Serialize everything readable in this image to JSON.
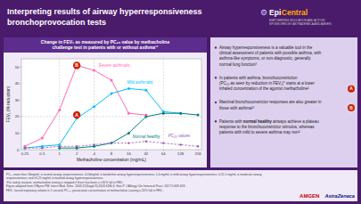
{
  "header": {
    "title_lines": [
      "Interpreting results of airway hyperresponsiveness",
      "bronchoprovocation tests"
    ],
    "logo": {
      "icon": "⚙",
      "parts": [
        "Epi",
        "Central"
      ],
      "tagline": "EMPOWERING EDUCATION AND ACTION\nSPONSORED BY ASTRAZENECA AND AMGEN"
    }
  },
  "chart_data": {
    "type": "line",
    "title": "Change in FEV₁ as measured by PC₂₀ value by methacholine\nchallenge test in patients with or without asthma¹²",
    "xlabel": "Methacholine concentration (mg/mL)",
    "ylabel": "FEV₁ (% reduction)",
    "log": "x",
    "x": [
      0.25,
      0.5,
      1,
      2,
      4,
      8,
      16,
      32,
      64,
      128,
      256
    ],
    "xlim": [
      0.21763764,
      294.0667789
    ],
    "xticks": [
      0.25,
      0.5,
      1,
      2,
      4,
      8,
      16,
      32,
      64,
      128,
      256
    ],
    "ylim": [
      0,
      55
    ],
    "yticks": [
      0,
      10,
      20,
      30,
      40,
      50
    ],
    "grid": false,
    "series": [
      {
        "name": "Severe asthmatic",
        "color": "#ff69b4",
        "marker": "circle",
        "line_style": "solid",
        "values": [
          2,
          7,
          24,
          51,
          48,
          42,
          22,
          21,
          null,
          null,
          null
        ]
      },
      {
        "name": "Mild asthmatic",
        "color": "#00bfff",
        "marker": "circle",
        "line_style": "solid",
        "values": [
          1,
          2,
          3,
          19,
          26,
          34,
          37,
          36,
          23,
          22,
          null
        ]
      },
      {
        "name": "Normal healthy",
        "color": "#008080",
        "marker": "circle",
        "line_style": "solid",
        "values": [
          null,
          null,
          1,
          1,
          2,
          4,
          10,
          20,
          22,
          22,
          21
        ]
      },
      {
        "name": "PC₂₀ values",
        "color": "#9b59b6",
        "marker": "circle",
        "line_style": "dashed",
        "values": [
          1,
          1,
          2,
          2,
          3,
          4,
          4,
          5,
          4,
          3,
          2
        ]
      }
    ],
    "hlines": [
      20
    ],
    "vlines": [
      1,
      4,
      64
    ],
    "annotations": [
      {
        "text": "A",
        "x": 2,
        "y": 21
      },
      {
        "text": "B",
        "x": 2,
        "y": 51
      }
    ]
  },
  "side_panel": {
    "bullets": [
      {
        "text": "Airway hyperresponsiveness is a valuable tool in the\nclinical assessment of patients with possible asthma, with\nasthma-like symptoms, or non-diagnostic, generally\nnormal lung function³"
      },
      {
        "text": "In patients with asthma, bronchoconstriction\n(PC₂₀ as seen by reduction in FEV₁)° starts at a lower\ninhaled concentration of the agonist methacholine²",
        "marker": "A"
      },
      {
        "text": "Maximal bronchoconstrictor responses are also greater in\nthose with asthma²³",
        "marker": "B"
      },
      {
        "text": "Patients with normal healthy airways achieve a plateau\nresponse to the bronchoconstrictor stimulus, whereas\npatients with mild to severe asthma may not¹²",
        "emphasis": "normal healthy"
      }
    ]
  },
  "footer": {
    "lines": [
      "PC₂₀ more than 16mg/mL is normal airway responsiveness; 4-16mg/mL is borderline airway hyperresponsiveness; 1-4 mg/mL is mild airway hyperresponsiveness; 0.25-1 mg/mL is moderate airway",
      "responsiveness; and <0.25 mg/mL is marked airway hyperresponsiveness.",
      "²For safety reasons, methacholine testing is stopped if there has been a >20% fall in FEV₁.",
      "Figure adapted from O'Byrne PM. Intern Med. Dime. 2003;12(Suppl 3):4118-4180;3. Han P. J Allergy Clin Immunol Pract. 2017;5:609-618.",
      "FEV₁, forced expiratory volume in 1 second; PC₂₀, provocation concentration of methacholine causing a 20% fall in FEV₁."
    ],
    "logos": [
      "AMGEN",
      "AstraZeneca"
    ]
  }
}
